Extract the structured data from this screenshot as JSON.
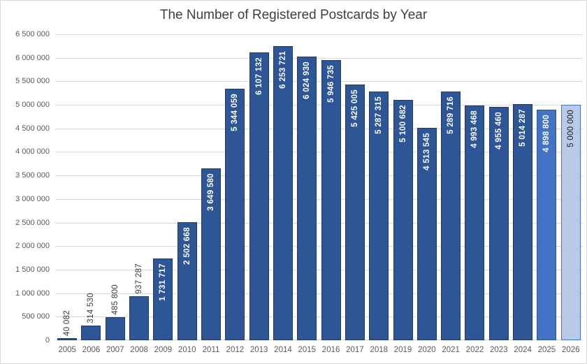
{
  "colors": {
    "bar_dark_fill": "#2E5596",
    "bar_dark_border": "#203864",
    "bar_medium_fill": "#4472C4",
    "bar_medium_border": "#2E5596",
    "bar_light_fill": "#B9C9E8",
    "bar_light_border": "#4472C4",
    "label_inside": "#FFFFFF",
    "label_light_bar": "#1F1F1F",
    "label_outside": "#3B3B3B",
    "gridline": "#D9D9D9",
    "axis_text": "#595959",
    "title_text": "#404040",
    "chart_border": "#D9D9D9"
  },
  "chart_data": {
    "type": "bar",
    "title": "The Number of Registered Postcards by Year",
    "xlabel": "",
    "ylabel": "",
    "ylim": [
      0,
      6500000
    ],
    "ytick_step": 500000,
    "grid": true,
    "legend": "none",
    "categories": [
      "2005",
      "2006",
      "2007",
      "2008",
      "2009",
      "2010",
      "2011",
      "2012",
      "2013",
      "2014",
      "2015",
      "2016",
      "2017",
      "2018",
      "2019",
      "2020",
      "2021",
      "2022",
      "2023",
      "2024",
      "2025",
      "2026"
    ],
    "values": [
      40082,
      314530,
      485800,
      937287,
      1731717,
      2502668,
      3649580,
      5344059,
      6107132,
      6253721,
      6024930,
      5946735,
      5425005,
      5287315,
      5100682,
      4513545,
      5289716,
      4993468,
      4955460,
      5014287,
      4898800,
      5000000
    ],
    "data_labels": [
      "40 082",
      "314 530",
      "485 800",
      "937 287",
      "1 731 717",
      "2 502 668",
      "3 649 580",
      "5 344 059",
      "6 107 132",
      "6 253 721",
      "6 024 930",
      "5 946 735",
      "5 425 005",
      "5 287 315",
      "5 100 682",
      "4 513 545",
      "5 289 716",
      "4 993 468",
      "4 955 460",
      "5 014 287",
      "4 898 800",
      "5 000 000"
    ],
    "ytick_labels": [
      "0",
      "500 000",
      "1 000 000",
      "1 500 000",
      "2 000 000",
      "2 500 000",
      "3 000 000",
      "3 500 000",
      "4 000 000",
      "4 500 000",
      "5 000 000",
      "5 500 000",
      "6 000 000",
      "6 500 000"
    ],
    "bar_variants": {
      "2025": "medium",
      "2026": "light"
    }
  }
}
